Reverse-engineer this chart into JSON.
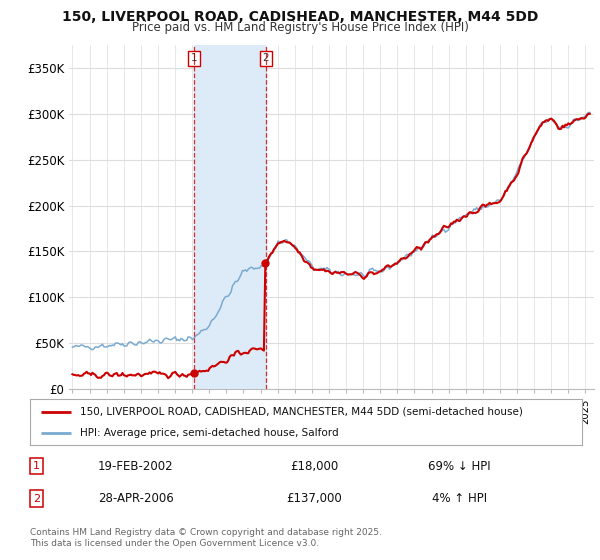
{
  "title_line1": "150, LIVERPOOL ROAD, CADISHEAD, MANCHESTER, M44 5DD",
  "title_line2": "Price paid vs. HM Land Registry's House Price Index (HPI)",
  "background_color": "#ffffff",
  "plot_bg_color": "#ffffff",
  "grid_color": "#dddddd",
  "red_color": "#cc0000",
  "blue_color": "#7aaad0",
  "blue_fill_color": "#ddeaf8",
  "purchase1_date_num": 2002.13,
  "purchase1_price": 18000,
  "purchase1_date_str": "19-FEB-2002",
  "purchase1_amount": "£18,000",
  "purchase1_hpi": "69% ↓ HPI",
  "purchase2_date_num": 2006.32,
  "purchase2_price": 137000,
  "purchase2_date_str": "28-APR-2006",
  "purchase2_amount": "£137,000",
  "purchase2_hpi": "4% ↑ HPI",
  "legend_line1": "150, LIVERPOOL ROAD, CADISHEAD, MANCHESTER, M44 5DD (semi-detached house)",
  "legend_line2": "HPI: Average price, semi-detached house, Salford",
  "footer": "Contains HM Land Registry data © Crown copyright and database right 2025.\nThis data is licensed under the Open Government Licence v3.0.",
  "ylim_max": 375000,
  "yticks": [
    0,
    50000,
    100000,
    150000,
    200000,
    250000,
    300000,
    350000
  ],
  "ytick_labels": [
    "£0",
    "£50K",
    "£100K",
    "£150K",
    "£200K",
    "£250K",
    "£300K",
    "£350K"
  ],
  "xmin": 1994.8,
  "xmax": 2025.5
}
